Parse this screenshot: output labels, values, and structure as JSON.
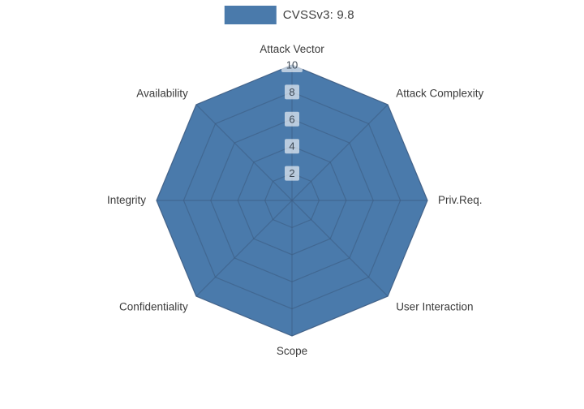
{
  "legend": {
    "label": "CVSSv3: 9.8"
  },
  "chart_data": {
    "type": "radar",
    "title": "CVSSv3: 9.8",
    "categories": [
      "Attack Vector",
      "Attack Complexity",
      "Priv.Req.",
      "User Interaction",
      "Scope",
      "Confidentiality",
      "Integrity",
      "Availability"
    ],
    "series": [
      {
        "name": "CVSSv3: 9.8",
        "values": [
          10,
          10,
          10,
          10,
          10,
          10,
          10,
          10
        ],
        "color": "#4a7aab"
      }
    ],
    "max": 10,
    "radial_ticks": [
      2,
      4,
      6,
      8,
      10
    ],
    "grid": true,
    "legend_position": "top-center",
    "colors": {
      "fill": "#4a7aab",
      "grid": "#3c5b82",
      "tick_text": "#3d4854",
      "tick_bg": "#ffffff",
      "axis_label_text": "#3b3b3b"
    }
  }
}
